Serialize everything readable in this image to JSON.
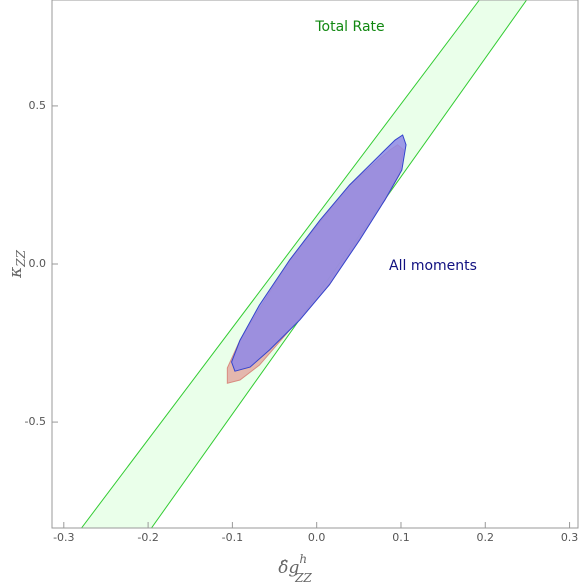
{
  "chart_data": {
    "type": "region",
    "x_label": {
      "main": "δ̂g",
      "sup": "h",
      "sub": "ZZ"
    },
    "y_label": {
      "main": "κ",
      "sub": "ZZ"
    },
    "xlim": [
      -0.314,
      0.31
    ],
    "ylim": [
      -0.835,
      0.835
    ],
    "xticks": [
      -0.3,
      -0.2,
      -0.1,
      {
        "value": 0,
        "label": "0.0"
      },
      0.1,
      0.2,
      0.3
    ],
    "yticks": [
      -0.5,
      {
        "value": 0,
        "label": "0.0"
      },
      0.5
    ],
    "series": [
      {
        "name": "Total Rate",
        "color": "#33cc33",
        "fill": "#eaffea",
        "x": [
          -0.279,
          0.193,
          0.249,
          -0.196
        ],
        "y": [
          -0.835,
          0.835,
          0.835,
          -0.835
        ]
      },
      {
        "color": "#d98c80",
        "fill": "#e3aaa2",
        "x": [
          -0.106,
          -0.106,
          -0.091,
          -0.032,
          0.039,
          0.087,
          0.096,
          0.103,
          0.098,
          0.081,
          0.015,
          -0.032,
          -0.068,
          -0.091
        ],
        "y": [
          -0.377,
          -0.329,
          -0.241,
          0.013,
          0.25,
          0.361,
          0.377,
          0.361,
          0.282,
          0.203,
          -0.066,
          -0.209,
          -0.32,
          -0.367
        ]
      },
      {
        "name": "All moments",
        "color": "#3344cc",
        "fill": "#8f88e6",
        "x": [
          -0.097,
          -0.101,
          -0.091,
          -0.068,
          -0.032,
          0.004,
          0.039,
          0.075,
          0.093,
          0.102,
          0.106,
          0.101,
          0.081,
          0.051,
          0.015,
          -0.02,
          -0.056,
          -0.079
        ],
        "y": [
          -0.339,
          -0.31,
          -0.241,
          -0.13,
          0.013,
          0.139,
          0.25,
          0.345,
          0.392,
          0.408,
          0.377,
          0.297,
          0.203,
          0.076,
          -0.066,
          -0.177,
          -0.272,
          -0.326
        ]
      }
    ]
  }
}
